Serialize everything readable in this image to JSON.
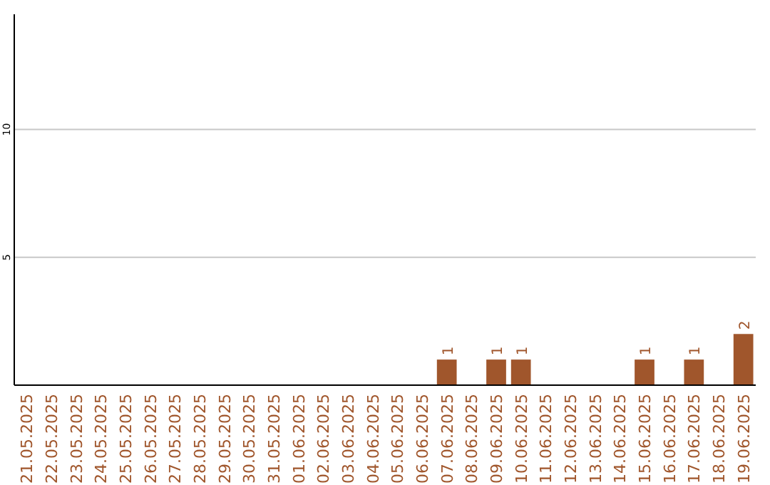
{
  "chart_data": {
    "type": "bar",
    "categories": [
      "21.05.2025",
      "22.05.2025",
      "23.05.2025",
      "24.05.2025",
      "25.05.2025",
      "26.05.2025",
      "27.05.2025",
      "28.05.2025",
      "29.05.2025",
      "30.05.2025",
      "31.05.2025",
      "01.06.2025",
      "02.06.2025",
      "03.06.2025",
      "04.06.2025",
      "05.06.2025",
      "06.06.2025",
      "07.06.2025",
      "08.06.2025",
      "09.06.2025",
      "10.06.2025",
      "11.06.2025",
      "12.06.2025",
      "13.06.2025",
      "14.06.2025",
      "15.06.2025",
      "16.06.2025",
      "17.06.2025",
      "18.06.2025",
      "19.06.2025"
    ],
    "values": [
      0,
      0,
      0,
      0,
      0,
      0,
      0,
      0,
      0,
      0,
      0,
      0,
      0,
      0,
      0,
      0,
      0,
      1,
      0,
      1,
      1,
      0,
      0,
      0,
      0,
      1,
      0,
      1,
      0,
      2
    ],
    "value_labels": [
      null,
      null,
      null,
      null,
      null,
      null,
      null,
      null,
      null,
      null,
      null,
      null,
      null,
      null,
      null,
      null,
      null,
      "1",
      null,
      "1",
      "1",
      null,
      null,
      null,
      null,
      "1",
      null,
      "1",
      null,
      "2"
    ],
    "color": "#a0562c",
    "ylim": [
      0,
      14.5
    ],
    "yticks": [
      5,
      10
    ],
    "grid": "y"
  }
}
